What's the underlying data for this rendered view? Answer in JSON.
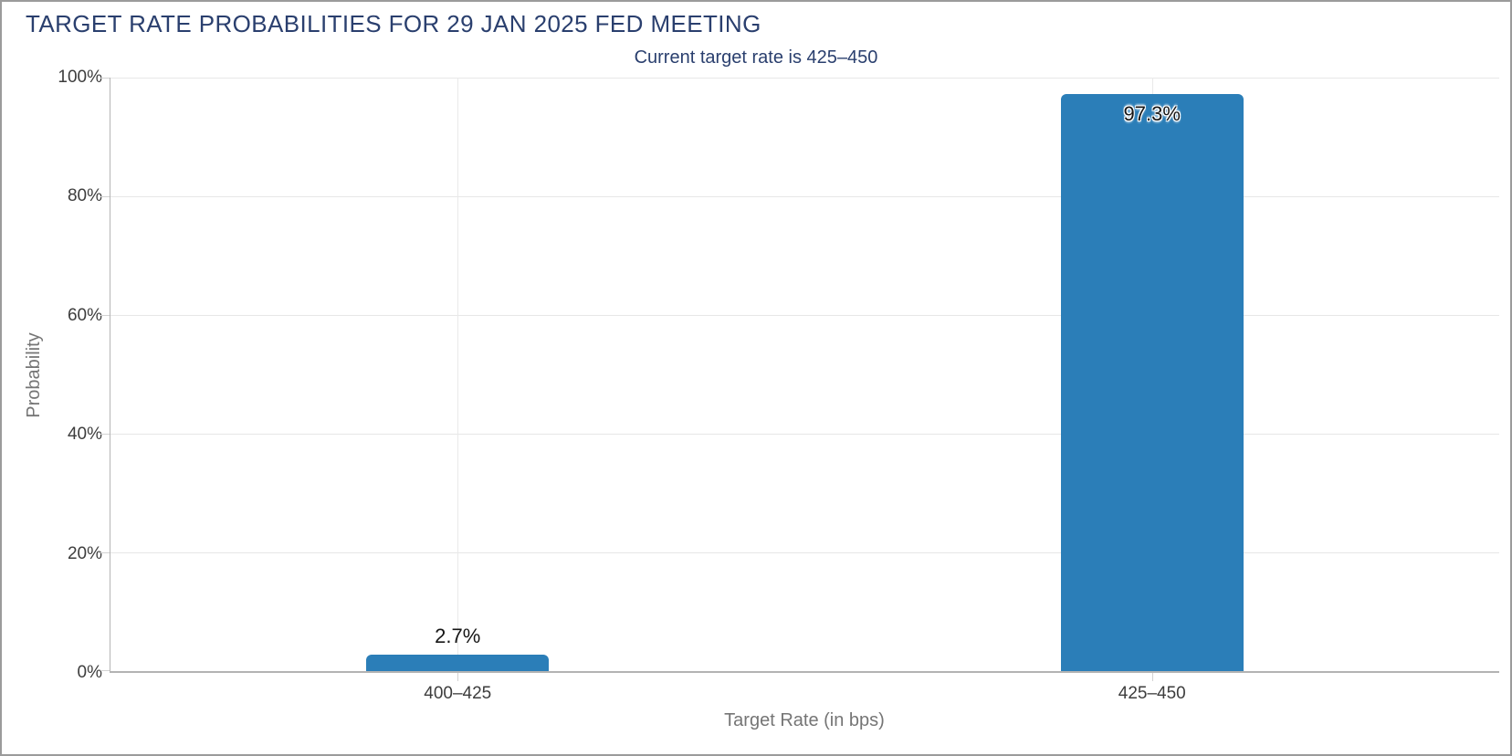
{
  "page": {
    "background": "#ffffff",
    "border_color": "#9b9b9b"
  },
  "chart_data": {
    "type": "bar",
    "title": "TARGET RATE PROBABILITIES FOR 29 JAN 2025 FED MEETING",
    "subtitle": "Current target rate is 425–450",
    "xlabel": "Target Rate (in bps)",
    "ylabel": "Probability",
    "categories": [
      "400–425",
      "425–450"
    ],
    "values": [
      2.7,
      97.3
    ],
    "value_labels": [
      "2.7%",
      "97.3%"
    ],
    "yticks": [
      "0%",
      "20%",
      "40%",
      "60%",
      "80%",
      "100%"
    ],
    "ylim": [
      0,
      100
    ],
    "grid": true,
    "legend": false,
    "colors": {
      "bar": "#2b7eb8",
      "title_text": "#2a3f6e",
      "subtitle_text": "#2a3f6e",
      "tick_text": "#3d3d3d",
      "axis_title_text": "#757575",
      "gridline": "#e7e7e7",
      "axis_line": "#b3b3b3"
    }
  }
}
